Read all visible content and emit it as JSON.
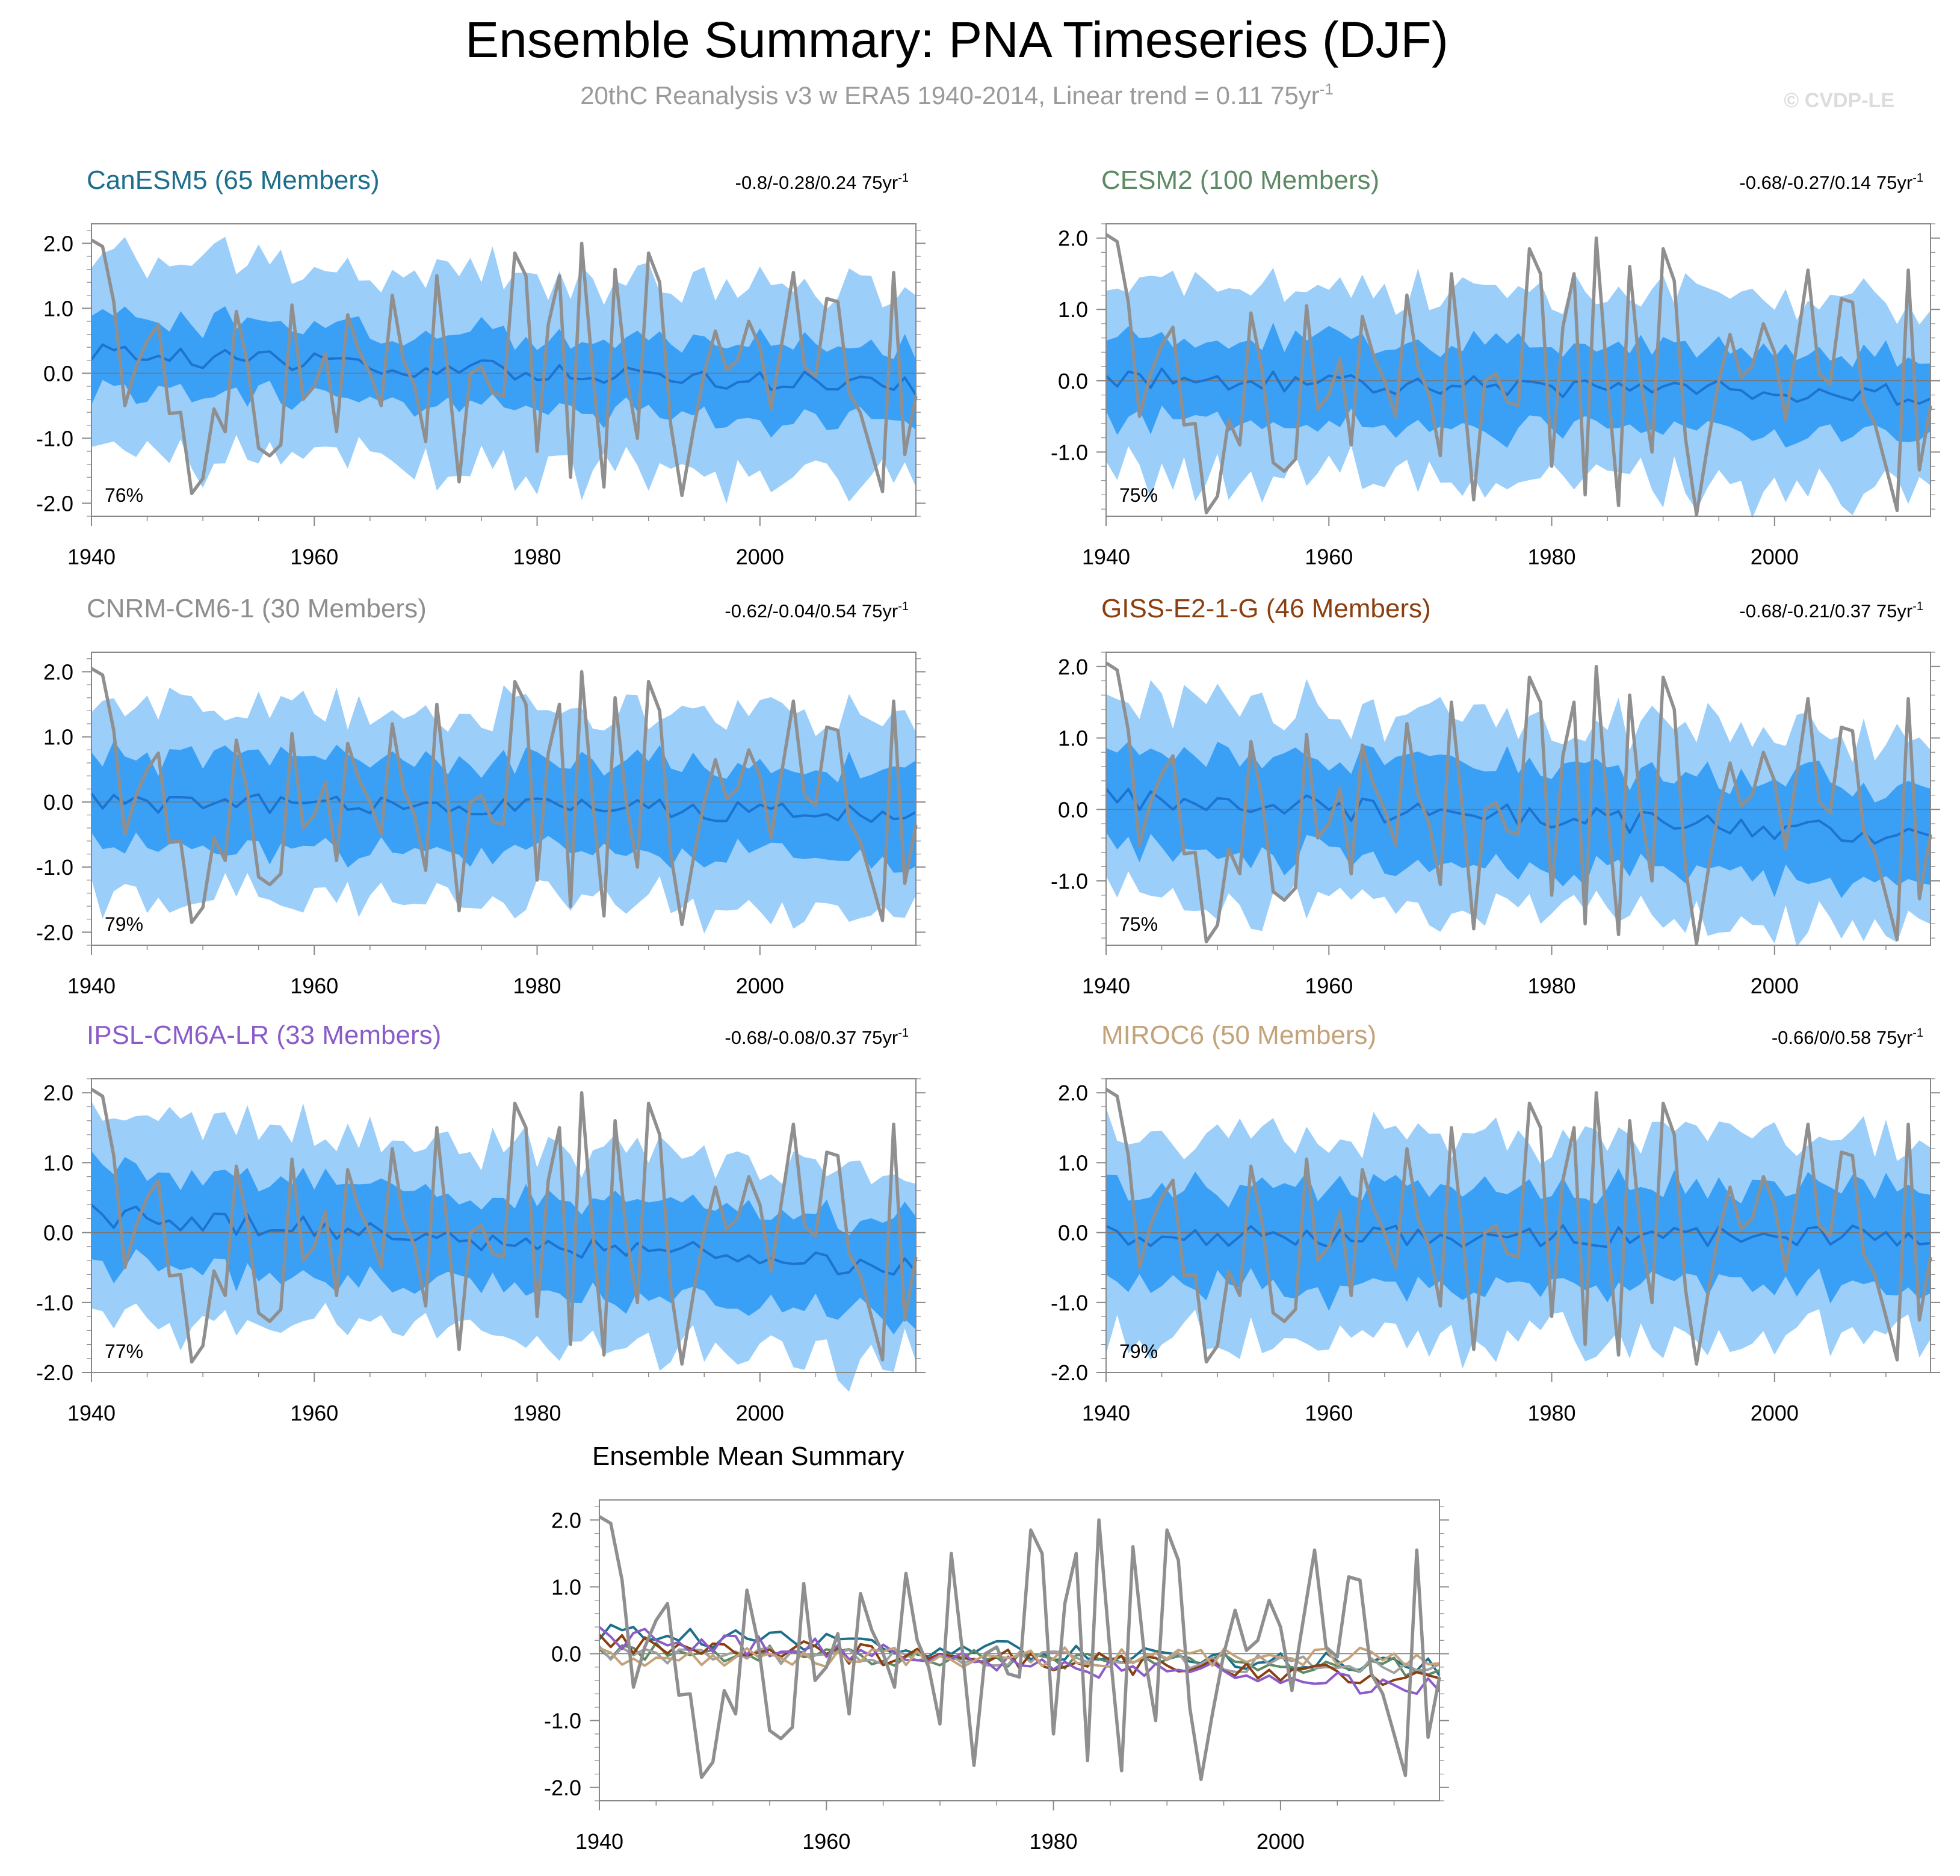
{
  "header": {
    "title": "Ensemble Summary: PNA Timeseries (DJF)",
    "subtitle": "20thC Reanalysis v3 w ERA5 1940-2014, Linear trend = 0.11 75yr",
    "subtitle_sup": "-1",
    "watermark": "© CVDP-LE"
  },
  "colors": {
    "outer_band": "#9ccefa",
    "inner_band": "#3aa0f6",
    "ensemble_mean": "#1d73d0",
    "observed": "#8f8f8f",
    "axis": "#888888",
    "zero_line": "#777777"
  },
  "chart_data": [
    {
      "id": "canesm5",
      "type": "area",
      "title": "CanESM5 (65 Members)",
      "title_color": "#1d6f8b",
      "trend_range": "-0.8/-0.28/0.24 75yr",
      "trend_sup": "-1",
      "pct_label": "76%",
      "x_range": [
        1940,
        2014
      ],
      "ylim": [
        -2.2,
        2.3
      ],
      "x_ticks": [
        "1940",
        "1960",
        "1980",
        "2000"
      ],
      "y_ticks": [
        "2.0",
        "1.0",
        "0.0",
        "-1.0",
        "-2.0"
      ],
      "band_inner": 0.55,
      "band_outer": 1.45,
      "mean_amp": 0.16,
      "mean_start": 0.3,
      "mean_end": -0.2,
      "seed": 3
    },
    {
      "id": "cesm2",
      "type": "area",
      "title": "CESM2 (100 Members)",
      "title_color": "#5d8a64",
      "trend_range": "-0.68/-0.27/0.14 75yr",
      "trend_sup": "-1",
      "pct_label": "75%",
      "x_range": [
        1940,
        2014
      ],
      "ylim": [
        -1.9,
        2.2
      ],
      "x_ticks": [
        "1940",
        "1960",
        "1980",
        "2000"
      ],
      "y_ticks": [
        "2.0",
        "1.0",
        "0.0",
        "-1.0"
      ],
      "band_inner": 0.58,
      "band_outer": 1.3,
      "mean_amp": 0.15,
      "mean_start": 0.05,
      "mean_end": -0.2,
      "seed": 7
    },
    {
      "id": "cnrm",
      "type": "area",
      "title": "CNRM-CM6-1 (30 Members)",
      "title_color": "#8e8e8e",
      "trend_range": "-0.62/-0.04/0.54 75yr",
      "trend_sup": "-1",
      "pct_label": "79%",
      "x_range": [
        1940,
        2014
      ],
      "ylim": [
        -2.2,
        2.3
      ],
      "x_ticks": [
        "1940",
        "1960",
        "1980",
        "2000"
      ],
      "y_ticks": [
        "2.0",
        "1.0",
        "0.0",
        "-1.0",
        "-2.0"
      ],
      "band_inner": 0.68,
      "band_outer": 1.45,
      "mean_amp": 0.16,
      "mean_start": 0.0,
      "mean_end": -0.18,
      "seed": 11
    },
    {
      "id": "giss",
      "type": "area",
      "title": "GISS-E2-1-G (46 Members)",
      "title_color": "#8b3e0e",
      "trend_range": "-0.68/-0.21/0.37 75yr",
      "trend_sup": "-1",
      "pct_label": "75%",
      "x_range": [
        1940,
        2014
      ],
      "ylim": [
        -1.9,
        2.2
      ],
      "x_ticks": [
        "1940",
        "1960",
        "1980",
        "2000"
      ],
      "y_ticks": [
        "2.0",
        "1.0",
        "0.0",
        "-1.0"
      ],
      "band_inner": 0.68,
      "band_outer": 1.35,
      "mean_amp": 0.17,
      "mean_start": 0.15,
      "mean_end": -0.35,
      "seed": 17
    },
    {
      "id": "ipsl",
      "type": "area",
      "title": "IPSL-CM6A-LR (33 Members)",
      "title_color": "#8b5cc8",
      "trend_range": "-0.68/-0.08/0.37 75yr",
      "trend_sup": "-1",
      "pct_label": "77%",
      "x_range": [
        1940,
        2014
      ],
      "ylim": [
        -2.0,
        2.2
      ],
      "x_ticks": [
        "1940",
        "1960",
        "1980",
        "2000"
      ],
      "y_ticks": [
        "2.0",
        "1.0",
        "0.0",
        "-1.0",
        "-2.0"
      ],
      "band_inner": 0.65,
      "band_outer": 1.35,
      "mean_amp": 0.17,
      "mean_start": 0.25,
      "mean_end": -0.5,
      "seed": 23
    },
    {
      "id": "miroc6",
      "type": "area",
      "title": "MIROC6 (50 Members)",
      "title_color": "#c4a27a",
      "trend_range": "-0.66/0/0.58 75yr",
      "trend_sup": "-1",
      "pct_label": "79%",
      "x_range": [
        1940,
        2014
      ],
      "ylim": [
        -2.0,
        2.2
      ],
      "x_ticks": [
        "1940",
        "1960",
        "1980",
        "2000"
      ],
      "y_ticks": [
        "2.0",
        "1.0",
        "0.0",
        "-1.0",
        "-2.0"
      ],
      "band_inner": 0.68,
      "band_outer": 1.4,
      "mean_amp": 0.16,
      "mean_start": -0.05,
      "mean_end": -0.05,
      "seed": 29
    },
    {
      "id": "summary",
      "type": "line",
      "title": "Ensemble Mean Summary",
      "title_color": "#000000",
      "x_range": [
        1940,
        2014
      ],
      "ylim": [
        -2.2,
        2.3
      ],
      "x_ticks": [
        "1940",
        "1960",
        "1980",
        "2000"
      ],
      "y_ticks": [
        "2.0",
        "1.0",
        "0.0",
        "-1.0",
        "-2.0"
      ],
      "series": [
        {
          "name": "CanESM5",
          "color": "#1d6f8b",
          "amp": 0.15,
          "start": 0.3,
          "end": -0.2,
          "seed": 3
        },
        {
          "name": "CESM2",
          "color": "#5d8a64",
          "amp": 0.14,
          "start": 0.05,
          "end": -0.2,
          "seed": 7
        },
        {
          "name": "CNRM-CM6-1",
          "color": "#a0a0a0",
          "amp": 0.14,
          "start": 0.0,
          "end": -0.18,
          "seed": 11
        },
        {
          "name": "GISS-E2-1-G",
          "color": "#8b3e0e",
          "amp": 0.16,
          "start": 0.15,
          "end": -0.35,
          "seed": 17
        },
        {
          "name": "IPSL-CM6A-LR",
          "color": "#8b5cc8",
          "amp": 0.17,
          "start": 0.25,
          "end": -0.5,
          "seed": 23
        },
        {
          "name": "MIROC6",
          "color": "#c4a27a",
          "amp": 0.15,
          "start": -0.05,
          "end": -0.05,
          "seed": 29
        }
      ]
    }
  ],
  "observed": {
    "name": "20thC Reanalysis v3 w ERA5",
    "years": [
      1940,
      2014
    ],
    "values": [
      2.05,
      1.95,
      1.1,
      -0.5,
      0.1,
      0.5,
      0.75,
      -0.62,
      -0.6,
      -1.85,
      -1.62,
      -0.55,
      -0.9,
      0.95,
      0.15,
      -1.15,
      -1.27,
      -1.1,
      1.05,
      -0.4,
      -0.2,
      0.3,
      -0.9,
      0.9,
      0.35,
      0.0,
      -0.5,
      1.2,
      0.2,
      -0.2,
      -1.05,
      1.5,
      0.0,
      -1.67,
      0.0,
      0.1,
      -0.3,
      -0.35,
      1.85,
      1.5,
      -1.2,
      0.75,
      1.5,
      -1.6,
      2.0,
      0.0,
      -1.75,
      1.6,
      0.0,
      -1.0,
      1.85,
      1.4,
      -0.8,
      -1.88,
      -0.9,
      0.0,
      0.65,
      0.05,
      0.2,
      0.8,
      0.4,
      -0.55,
      0.5,
      1.55,
      0.1,
      -0.05,
      1.15,
      1.1,
      -0.3,
      -0.6,
      -1.2,
      -1.82,
      1.55,
      -1.25,
      -0.35
    ]
  }
}
